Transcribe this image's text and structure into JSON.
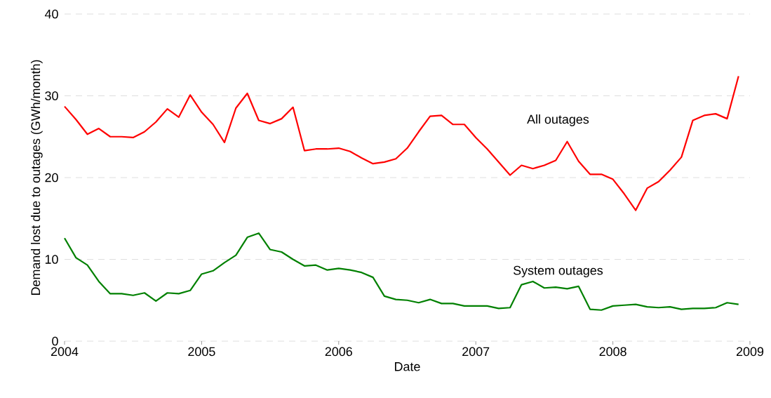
{
  "chart_data": {
    "type": "line",
    "xlabel": "Date",
    "ylabel": "Demand lost due to outages (GWh/month)",
    "x": [
      "2004-01",
      "2004-02",
      "2004-03",
      "2004-04",
      "2004-05",
      "2004-06",
      "2004-07",
      "2004-08",
      "2004-09",
      "2004-10",
      "2004-11",
      "2004-12",
      "2005-01",
      "2005-02",
      "2005-03",
      "2005-04",
      "2005-05",
      "2005-06",
      "2005-07",
      "2005-08",
      "2005-09",
      "2005-10",
      "2005-11",
      "2005-12",
      "2006-01",
      "2006-02",
      "2006-03",
      "2006-04",
      "2006-05",
      "2006-06",
      "2006-07",
      "2006-08",
      "2006-09",
      "2006-10",
      "2006-11",
      "2006-12",
      "2007-01",
      "2007-02",
      "2007-03",
      "2007-04",
      "2007-05",
      "2007-06",
      "2007-07",
      "2007-08",
      "2007-09",
      "2007-10",
      "2007-11",
      "2007-12",
      "2008-01",
      "2008-02",
      "2008-03",
      "2008-04",
      "2008-05",
      "2008-06",
      "2008-07",
      "2008-08",
      "2008-09",
      "2008-10",
      "2008-11",
      "2008-12"
    ],
    "series": [
      {
        "name": "All outages",
        "color": "#ff0000",
        "values": [
          28.7,
          27.1,
          25.3,
          26.0,
          25.0,
          25.0,
          24.9,
          25.6,
          26.8,
          28.4,
          27.4,
          30.1,
          28.0,
          26.5,
          24.3,
          28.5,
          30.3,
          27.0,
          26.6,
          27.2,
          28.6,
          23.3,
          23.5,
          23.5,
          23.6,
          23.2,
          22.4,
          21.7,
          21.9,
          22.3,
          23.6,
          25.6,
          27.5,
          27.6,
          26.5,
          26.5,
          24.9,
          23.5,
          21.9,
          20.3,
          21.5,
          21.1,
          21.5,
          22.1,
          24.4,
          22.0,
          20.4,
          20.4,
          19.8,
          18.0,
          16.0,
          18.7,
          19.5,
          20.9,
          22.5,
          27.0,
          27.6,
          27.8,
          27.2,
          32.4
        ]
      },
      {
        "name": "System outages",
        "color": "#008000",
        "values": [
          12.6,
          10.2,
          9.3,
          7.3,
          5.8,
          5.8,
          5.6,
          5.9,
          4.9,
          5.9,
          5.8,
          6.2,
          8.2,
          8.6,
          9.6,
          10.5,
          12.7,
          13.2,
          11.2,
          10.9,
          10.0,
          9.2,
          9.3,
          8.7,
          8.9,
          8.7,
          8.4,
          7.8,
          5.5,
          5.1,
          5.0,
          4.7,
          5.1,
          4.6,
          4.6,
          4.3,
          4.3,
          4.3,
          4.0,
          4.1,
          6.9,
          7.3,
          6.5,
          6.6,
          6.4,
          6.7,
          3.9,
          3.8,
          4.3,
          4.4,
          4.5,
          4.2,
          4.1,
          4.2,
          3.9,
          4.0,
          4.0,
          4.1,
          4.7,
          4.5
        ]
      }
    ],
    "xlim": [
      "2004",
      "2009"
    ],
    "xticks": [
      "2004",
      "2005",
      "2006",
      "2007",
      "2008",
      "2009"
    ],
    "ylim": [
      0,
      40
    ],
    "yticks": [
      0,
      10,
      20,
      30,
      40
    ],
    "grid": "y",
    "legend": false
  }
}
